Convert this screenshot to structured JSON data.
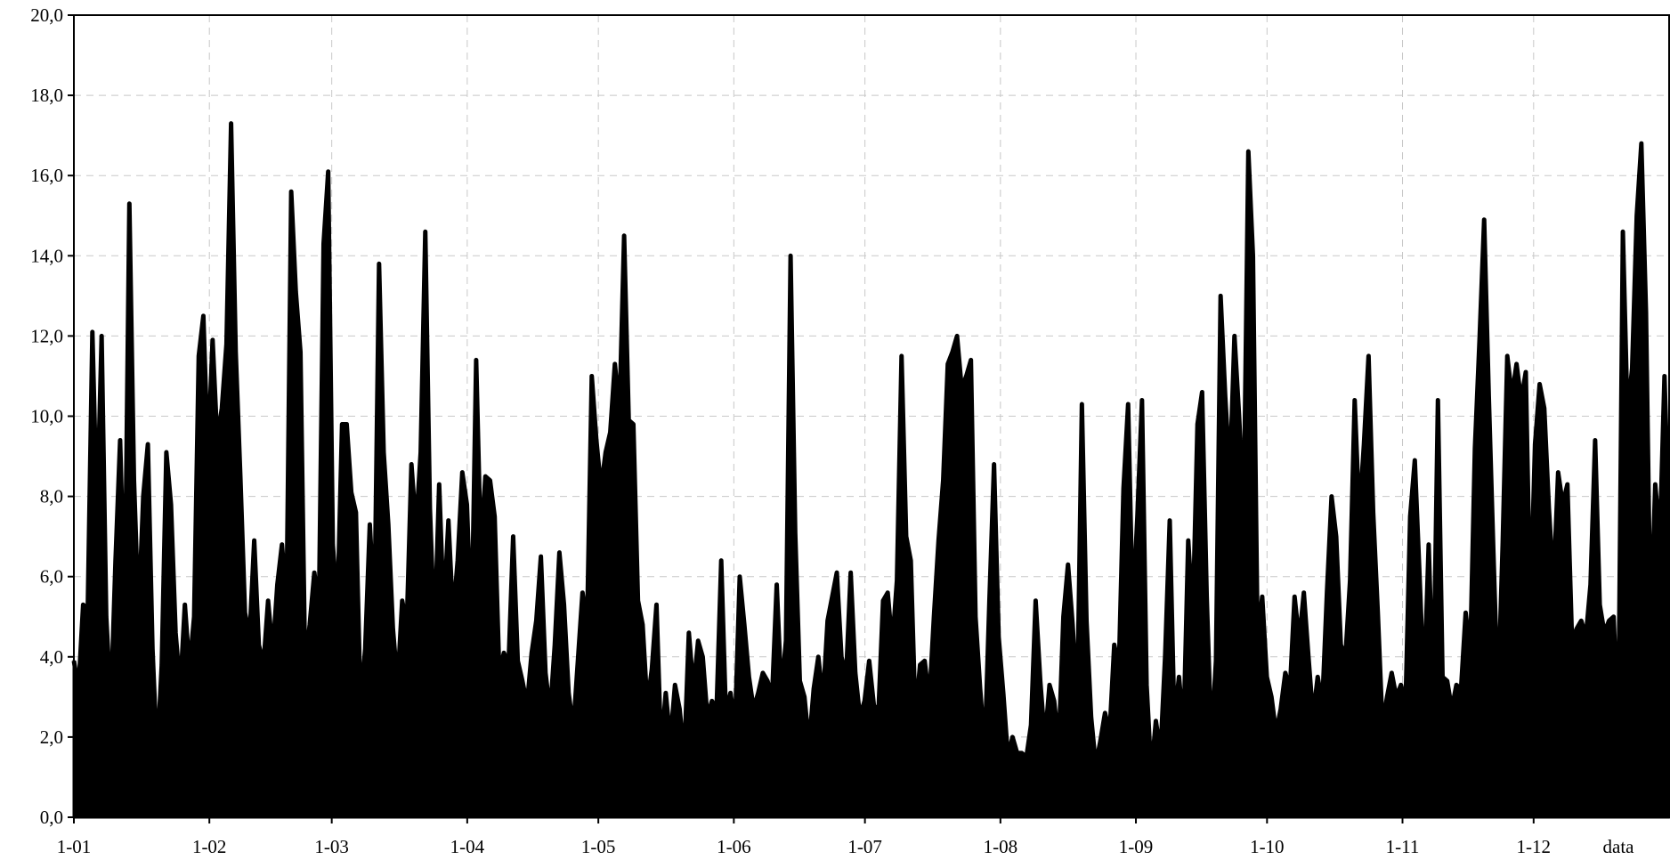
{
  "chart_data": {
    "type": "area",
    "title": "",
    "xlabel": "data",
    "ylabel": "",
    "ylim": [
      0,
      20
    ],
    "xlim": [
      1,
      366
    ],
    "grid": true,
    "legend": "none",
    "y_ticks": [
      0,
      2,
      4,
      6,
      8,
      10,
      12,
      14,
      16,
      18,
      20
    ],
    "y_tick_labels": [
      "0,0",
      "2,0",
      "4,0",
      "6,0",
      "8,0",
      "10,0",
      "12,0",
      "14,0",
      "16,0",
      "18,0",
      "20,0"
    ],
    "x_ticks": [
      1,
      32,
      60,
      91,
      121,
      152,
      182,
      213,
      244,
      274,
      305,
      335
    ],
    "x_tick_labels": [
      "1-01",
      "1-02",
      "1-03",
      "1-04",
      "1-05",
      "1-06",
      "1-07",
      "1-08",
      "1-09",
      "1-10",
      "1-11",
      "1-12"
    ],
    "fill_color": "#000000",
    "series": [
      {
        "values": [
          3.9,
          3.2,
          5.3,
          5.2,
          12.1,
          7.5,
          12.0,
          5.0,
          2.8,
          6.4,
          9.4,
          5.2,
          15.3,
          8.4,
          5.0,
          8.0,
          9.3,
          4.2,
          1.5,
          3.8,
          9.1,
          7.8,
          4.6,
          3.2,
          5.3,
          3.7,
          5.0,
          11.5,
          12.5,
          9.0,
          11.9,
          9.4,
          10.2,
          11.8,
          17.3,
          11.6,
          8.5,
          5.1,
          4.5,
          6.9,
          4.3,
          3.8,
          5.4,
          4.1,
          5.8,
          6.8,
          5.3,
          15.6,
          13.1,
          11.6,
          3.8,
          4.8,
          6.1,
          5.2,
          14.3,
          16.1,
          6.8,
          5.2,
          9.8,
          9.8,
          8.1,
          7.6,
          2.8,
          4.2,
          7.3,
          5.1,
          13.8,
          9.1,
          7.3,
          4.7,
          3.3,
          5.4,
          4.8,
          8.8,
          7.2,
          9.1,
          14.6,
          7.7,
          4.5,
          8.3,
          5.1,
          7.4,
          5.0,
          6.4,
          8.6,
          7.8,
          4.6,
          11.4,
          6.7,
          8.5,
          8.4,
          7.5,
          3.6,
          4.1,
          3.8,
          7.0,
          3.9,
          3.4,
          2.8,
          4.1,
          4.9,
          6.5,
          3.6,
          2.6,
          4.3,
          6.6,
          5.3,
          3.1,
          2.2,
          3.9,
          5.6,
          4.8,
          11.0,
          9.4,
          8.2,
          9.1,
          9.6,
          11.3,
          10.1,
          14.5,
          9.9,
          9.8,
          5.4,
          4.8,
          2.8,
          3.7,
          5.3,
          1.7,
          3.1,
          1.9,
          3.3,
          2.7,
          1.5,
          4.6,
          3.2,
          4.4,
          4.0,
          2.5,
          2.9,
          2.7,
          6.4,
          2.6,
          3.1,
          2.3,
          6.0,
          4.8,
          3.5,
          2.7,
          3.1,
          3.6,
          3.4,
          3.0,
          5.8,
          3.1,
          4.4,
          14.0,
          7.1,
          3.4,
          3.0,
          1.8,
          3.2,
          4.0,
          2.9,
          4.9,
          5.5,
          6.1,
          4.0,
          3.5,
          6.1,
          3.6,
          2.5,
          2.9,
          3.9,
          2.8,
          2.6,
          5.4,
          5.6,
          4.3,
          5.9,
          11.5,
          7.0,
          6.4,
          2.5,
          3.8,
          3.9,
          2.9,
          5.0,
          6.9,
          8.4,
          11.3,
          11.6,
          12.0,
          10.7,
          11.0,
          11.4,
          5.0,
          3.2,
          1.7,
          5.4,
          8.8,
          4.5,
          3.1,
          1.5,
          2.0,
          1.6,
          1.6,
          1.5,
          2.3,
          5.4,
          3.4,
          1.9,
          3.3,
          2.9,
          1.8,
          5.0,
          6.3,
          4.8,
          2.8,
          10.3,
          4.9,
          2.5,
          1.3,
          1.9,
          2.6,
          2.1,
          4.3,
          3.7,
          8.2,
          10.3,
          5.1,
          7.5,
          10.4,
          3.3,
          1.1,
          2.4,
          1.6,
          4.0,
          7.4,
          2.4,
          3.5,
          2.2,
          6.9,
          5.0,
          9.8,
          10.6,
          5.5,
          1.9,
          3.9,
          13.0,
          10.5,
          8.5,
          12.0,
          10.0,
          7.6,
          16.6,
          14.0,
          4.4,
          5.5,
          3.5,
          3.0,
          2.1,
          2.7,
          3.6,
          3.2,
          5.5,
          4.4,
          5.6,
          4.0,
          2.5,
          3.5,
          2.8,
          5.6,
          8.0,
          7.0,
          4.3,
          4.0,
          5.9,
          10.4,
          7.5,
          9.3,
          11.5,
          7.6,
          5.1,
          2.3,
          3.0,
          3.6,
          3.0,
          3.3,
          2.8,
          7.5,
          8.9,
          6.1,
          3.2,
          6.8,
          3.0,
          10.4,
          3.5,
          3.4,
          2.7,
          3.3,
          3.2,
          5.1,
          4.1,
          9.2,
          11.9,
          14.9,
          10.5,
          6.6,
          2.9,
          6.8,
          11.5,
          10.5,
          11.3,
          10.4,
          11.1,
          5.1,
          9.3,
          10.8,
          10.2,
          7.7,
          5.8,
          8.6,
          7.8,
          8.3,
          4.4,
          4.7,
          4.9,
          4.5,
          5.8,
          9.4,
          5.3,
          4.6,
          4.9,
          5.0,
          2.1,
          14.6,
          10.0,
          11.2,
          15.0,
          16.8,
          12.6,
          4.6,
          8.3,
          6.9,
          11.0,
          7.1
        ]
      }
    ]
  }
}
